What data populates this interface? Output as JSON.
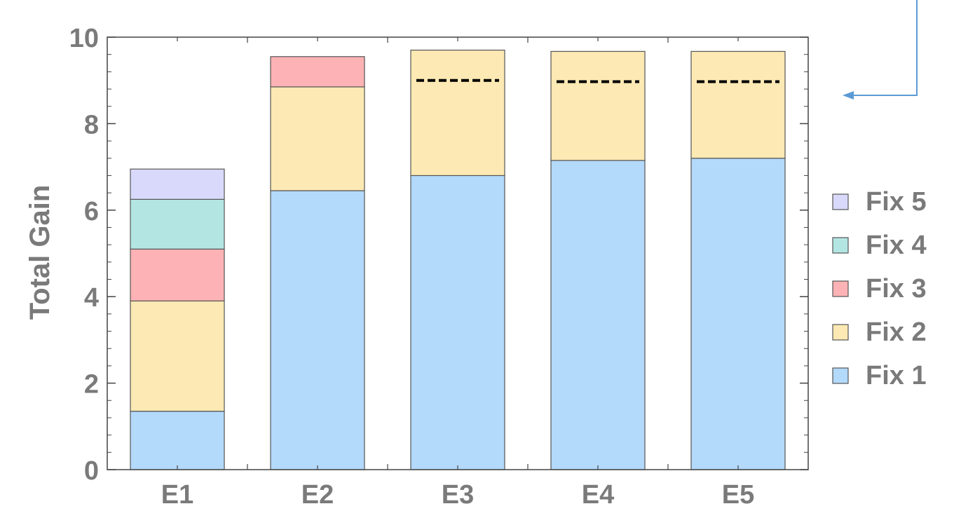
{
  "chart_data": {
    "type": "bar",
    "stacked": true,
    "categories": [
      "E1",
      "E2",
      "E3",
      "E4",
      "E5"
    ],
    "ylabel": "Total Gain",
    "ylim": [
      0,
      10
    ],
    "y_ticks": [
      "0",
      "2",
      "4",
      "6",
      "8",
      "10"
    ],
    "series": [
      {
        "name": "Fix 1",
        "color": "#b3d9fb",
        "values": [
          1.35,
          6.45,
          6.8,
          7.15,
          7.2
        ]
      },
      {
        "name": "Fix 2",
        "color": "#fde9b3",
        "values": [
          2.55,
          2.4,
          2.9,
          2.52,
          2.47
        ]
      },
      {
        "name": "Fix 3",
        "color": "#fdb3b5",
        "values": [
          1.2,
          0.7,
          0,
          0,
          0
        ]
      },
      {
        "name": "Fix 4",
        "color": "#b3e6e3",
        "values": [
          1.15,
          0,
          0,
          0,
          0
        ]
      },
      {
        "name": "Fix 5",
        "color": "#d9d9fb",
        "values": [
          0.7,
          0,
          0,
          0,
          0
        ]
      }
    ],
    "reference_lines": [
      {
        "category": "E3",
        "value": 9.0,
        "style": "dashed",
        "color": "#000000"
      },
      {
        "category": "E4",
        "value": 8.97,
        "style": "dashed",
        "color": "#000000"
      },
      {
        "category": "E5",
        "value": 8.97,
        "style": "dashed",
        "color": "#000000"
      }
    ],
    "legend_order": [
      "Fix 5",
      "Fix 4",
      "Fix 3",
      "Fix 2",
      "Fix 1"
    ],
    "legend_placement": "right",
    "grid": false,
    "annotation_arrow_color": "#5b9bd5"
  }
}
